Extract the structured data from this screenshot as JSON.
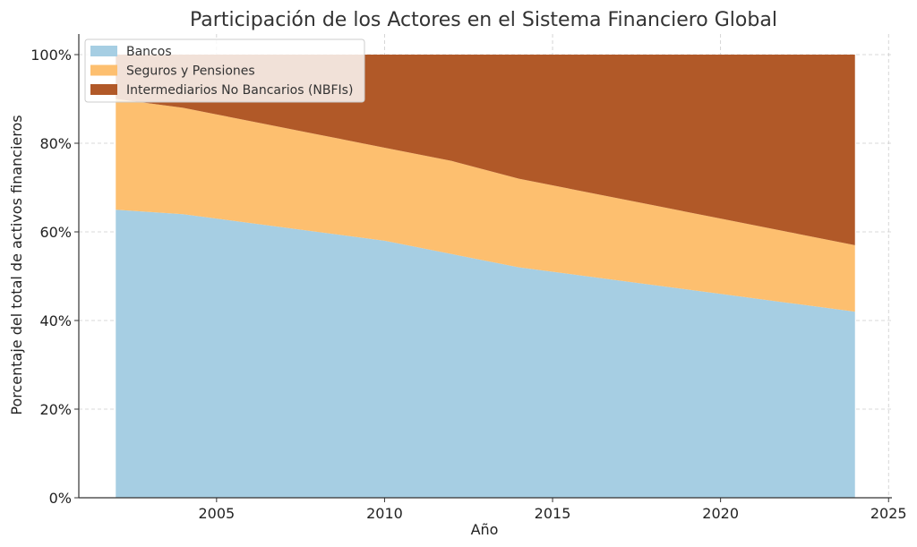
{
  "chart_data": {
    "type": "area",
    "stacked": true,
    "title": "Participación de los Actores en el Sistema Financiero Global",
    "xlabel": "Año",
    "ylabel": "Porcentaje del total de activos financieros",
    "x": [
      2002,
      2004,
      2006,
      2008,
      2010,
      2012,
      2014,
      2016,
      2018,
      2020,
      2022,
      2024
    ],
    "series": [
      {
        "name": "Bancos",
        "color": "#a6cee3",
        "values": [
          65,
          64,
          62,
          60,
          58,
          55,
          52,
          50,
          48,
          46,
          44,
          42
        ]
      },
      {
        "name": "Seguros y Pensiones",
        "color": "#fdbf6f",
        "values": [
          25,
          24,
          23,
          22,
          21,
          21,
          20,
          19,
          18,
          17,
          16,
          15
        ]
      },
      {
        "name": "Intermediarios No Bancarios (NBFIs)",
        "color": "#b15928",
        "values": [
          10,
          12,
          15,
          18,
          21,
          24,
          28,
          31,
          34,
          37,
          40,
          43
        ]
      }
    ],
    "xlim": [
      2000.9,
      2025.1
    ],
    "ylim": [
      0,
      100
    ],
    "xticks": [
      2005,
      2010,
      2015,
      2020,
      2025
    ],
    "xtick_labels": [
      "2005",
      "2010",
      "2015",
      "2020",
      "2025"
    ],
    "yticks": [
      0,
      20,
      40,
      60,
      80,
      100
    ],
    "ytick_labels": [
      "0%",
      "20%",
      "40%",
      "60%",
      "80%",
      "100%"
    ],
    "grid": true,
    "legend_position": "top-left"
  }
}
